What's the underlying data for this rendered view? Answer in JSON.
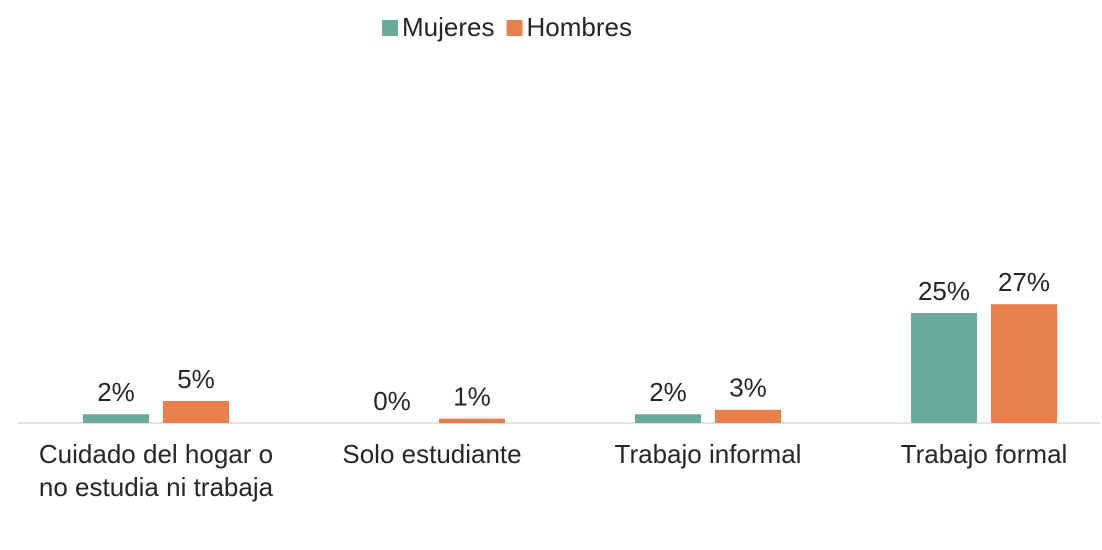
{
  "chart_data": {
    "type": "bar",
    "categories": [
      "Cuidado del hogar o no estudia ni trabaja",
      "Solo estudiante",
      "Trabajo informal",
      "Trabajo formal"
    ],
    "series": [
      {
        "name": "Mujeres",
        "color": "#6aab9c",
        "values": [
          2,
          0,
          2,
          25
        ],
        "value_labels": [
          "2%",
          "0%",
          "2%",
          "25%"
        ]
      },
      {
        "name": "Hombres",
        "color": "#e8804d",
        "values": [
          5,
          1,
          3,
          27
        ],
        "value_labels": [
          "5%",
          "1%",
          "3%",
          "27%"
        ]
      }
    ],
    "ylim": [
      0,
      80
    ],
    "legend": "top"
  }
}
